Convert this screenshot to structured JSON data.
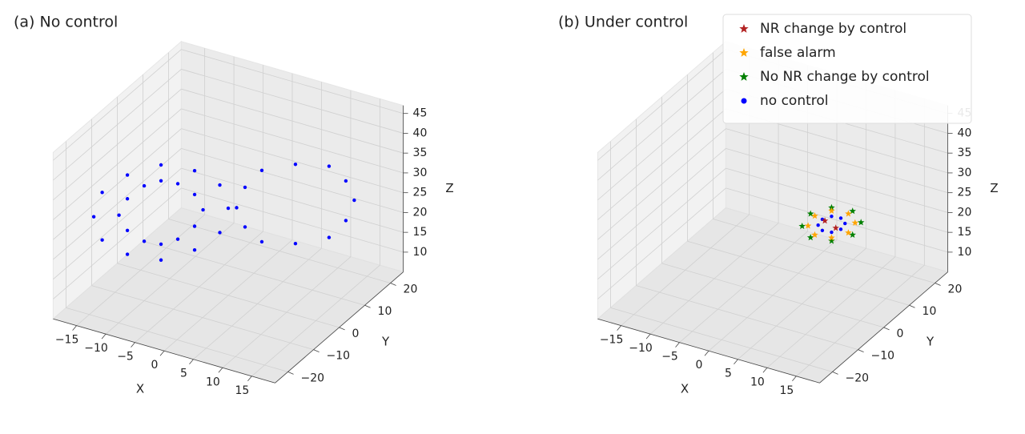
{
  "chart_data": [
    {
      "type": "scatter3d",
      "title": "(a) No control",
      "xlabel": "X",
      "ylabel": "Y",
      "zlabel": "Z",
      "xlim": [
        -19,
        19
      ],
      "ylim": [
        -25,
        25
      ],
      "zlim": [
        5,
        47
      ],
      "xticks": [
        {
          "value": -15,
          "label": "−15"
        },
        {
          "value": -10,
          "label": "−10"
        },
        {
          "value": -5,
          "label": "−5"
        },
        0,
        5,
        10,
        15
      ],
      "yticks": [
        {
          "value": -20,
          "label": "−20"
        },
        {
          "value": -10,
          "label": "−10"
        },
        0,
        10,
        20
      ],
      "zticks": [
        10,
        15,
        20,
        25,
        30,
        35,
        40,
        45
      ],
      "series": [
        {
          "name": "no control",
          "color": "#0000ff",
          "marker": "o",
          "x": [
            0,
            -1,
            -4,
            -8,
            -12,
            -15,
            -16,
            -15,
            -12,
            -8,
            -4,
            -1,
            -3,
            -4,
            -6,
            -8,
            -10,
            -12,
            -13,
            -12,
            -10,
            -8,
            -6,
            -4,
            15,
            14,
            12,
            8,
            4,
            2,
            1,
            2,
            4,
            8,
            12,
            14
          ],
          "y": [
            0,
            -1,
            -4,
            -8,
            -12,
            -15,
            -16,
            -15,
            -12,
            -8,
            -4,
            -1,
            -3,
            -4,
            -6,
            -8,
            -10,
            -12,
            -13,
            -12,
            -10,
            -8,
            -6,
            -4,
            15,
            14,
            12,
            8,
            4,
            2,
            1,
            2,
            4,
            8,
            12,
            14
          ],
          "z": [
            27,
            33,
            37,
            39,
            37,
            33,
            27,
            21,
            17,
            15,
            17,
            21,
            27,
            31,
            34,
            35,
            34,
            31,
            27,
            23,
            20,
            19,
            20,
            23,
            27,
            32,
            36,
            37,
            36,
            32,
            27,
            22,
            18,
            17,
            18,
            22
          ]
        }
      ]
    },
    {
      "type": "scatter3d",
      "title": "(b) Under control",
      "xlabel": "X",
      "ylabel": "Y",
      "zlabel": "Z",
      "xlim": [
        -19,
        19
      ],
      "ylim": [
        -25,
        25
      ],
      "zlim": [
        5,
        47
      ],
      "xticks": [
        {
          "value": -15,
          "label": "−15"
        },
        {
          "value": -10,
          "label": "−10"
        },
        {
          "value": -5,
          "label": "−5"
        },
        0,
        5,
        10,
        15
      ],
      "yticks": [
        {
          "value": -20,
          "label": "−20"
        },
        {
          "value": -10,
          "label": "−10"
        },
        0,
        10,
        20
      ],
      "zticks": [
        10,
        15,
        20,
        25,
        30,
        35,
        40,
        45
      ],
      "legend": "upper right",
      "series": [
        {
          "name": "NR change by control",
          "color": "#b22222",
          "marker": "*",
          "x": [
            7.5,
            6.2
          ],
          "y": [
            7.5,
            6.2
          ],
          "z": [
            21,
            23
          ]
        },
        {
          "name": "false alarm",
          "color": "#ffa500",
          "marker": "*",
          "x": [
            9.8,
            9,
            7,
            5,
            4.2,
            5,
            7,
            9
          ],
          "y": [
            9.8,
            9,
            7,
            5,
            4.2,
            5,
            7,
            9
          ],
          "z": [
            22,
            24.4,
            25.4,
            24.4,
            22,
            19.6,
            18.6,
            19.6
          ]
        },
        {
          "name": "No NR change by control",
          "color": "#008000",
          "marker": "*",
          "x": [
            10.5,
            9.5,
            7,
            4.5,
            3.5,
            4.5,
            7,
            9.5
          ],
          "y": [
            10.5,
            9.5,
            7,
            4.5,
            3.5,
            4.5,
            7,
            9.5
          ],
          "z": [
            22,
            25,
            26.2,
            25,
            22,
            19,
            17.8,
            19
          ]
        },
        {
          "name": "no control",
          "color": "#0000ff",
          "marker": "o",
          "x": [
            8.6,
            8.1,
            7,
            5.9,
            5.4,
            5.9,
            7,
            8.1
          ],
          "y": [
            8.6,
            8.1,
            7,
            5.9,
            5.4,
            5.9,
            7,
            8.1
          ],
          "z": [
            22,
            23.4,
            24,
            23.4,
            22,
            20.6,
            20,
            20.6
          ]
        }
      ]
    }
  ]
}
